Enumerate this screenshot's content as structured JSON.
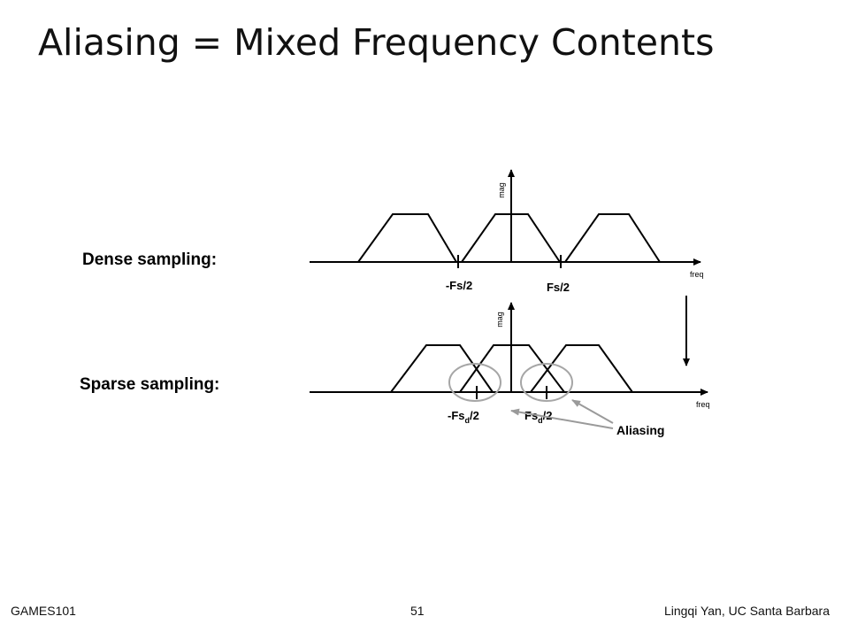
{
  "slide": {
    "title": "Aliasing = Mixed Frequency Contents",
    "footer_left": "GAMES101",
    "page_number": "51",
    "footer_right": "Lingqi Yan, UC Santa Barbara"
  },
  "dense": {
    "label": "Dense sampling:",
    "y_axis": "mag",
    "x_axis": "freq",
    "tick_neg": "-Fs/2",
    "tick_pos": "Fs/2"
  },
  "sparse": {
    "label": "Sparse sampling:",
    "y_axis": "mag",
    "x_axis": "freq",
    "tick_neg_main": "-Fs",
    "tick_neg_sub": "d",
    "tick_neg_tail": "/2",
    "tick_pos_main": "Fs",
    "tick_pos_sub": "d",
    "tick_pos_tail": "/2",
    "annotation": "Aliasing"
  },
  "colors": {
    "axis": "#000000",
    "circle": "#a6a6a6",
    "arrow": "#9a9a9a"
  }
}
